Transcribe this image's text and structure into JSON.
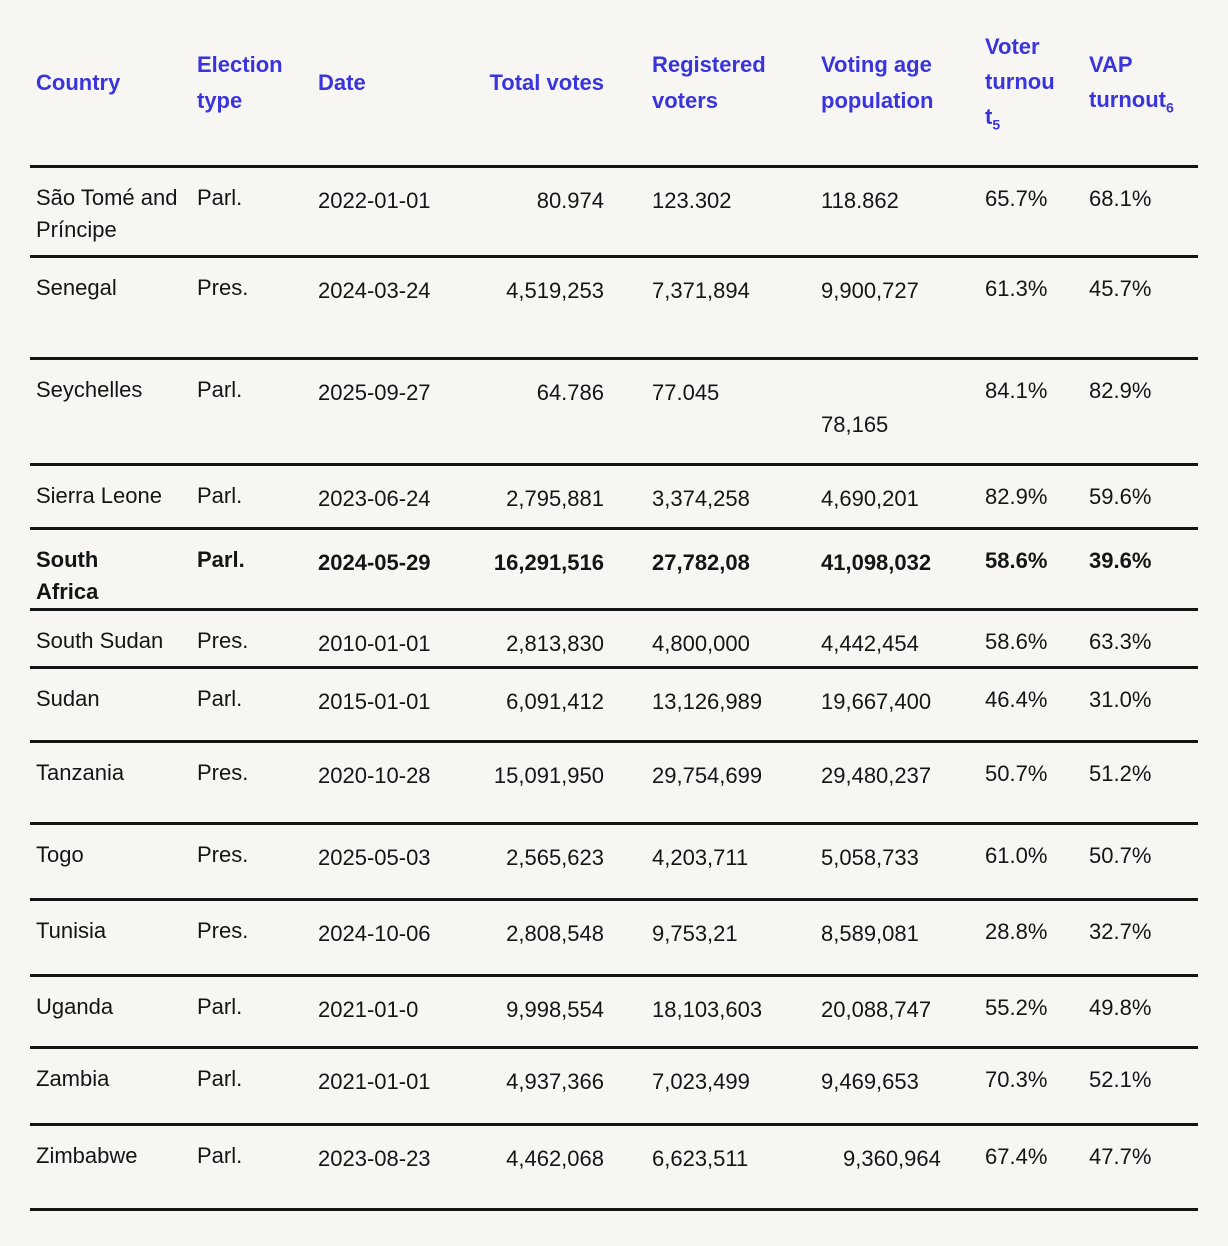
{
  "page": {
    "background_color": "#f7f6f2",
    "accent_color": "#3a34dd",
    "text_color": "#151515",
    "rule_color": "#141414"
  },
  "table": {
    "columns": [
      {
        "label": "Country",
        "sub": ""
      },
      {
        "label": "Election type",
        "sub": ""
      },
      {
        "label": "Date",
        "sub": ""
      },
      {
        "label": "Total votes",
        "sub": ""
      },
      {
        "label": "Registered voters",
        "sub": ""
      },
      {
        "label": "Voting age population",
        "sub": ""
      },
      {
        "label": "Voter turnout",
        "sub": "5"
      },
      {
        "label": "VAP turnout",
        "sub": "6"
      }
    ],
    "rows": [
      {
        "country": "São Tomé and Príncipe",
        "type": "Parl.",
        "date": "2022-01-01",
        "total_votes": "80.974",
        "registered": "123.302",
        "vap": "118.862",
        "turnout": "65.7%",
        "vap_turnout": "68.1%",
        "emphasized": false
      },
      {
        "country": "Senegal",
        "type": "Pres.",
        "date": "2024-03-24",
        "total_votes": "4,519,253",
        "registered": "7,371,894",
        "vap": "9,900,727",
        "turnout": "61.3%",
        "vap_turnout": "45.7%",
        "emphasized": false
      },
      {
        "country": "Seychelles",
        "type": "Parl.",
        "date": "2025-09-27",
        "total_votes": "64.786",
        "registered": "77.045",
        "vap": "78,165",
        "turnout": "84.1%",
        "vap_turnout": "82.9%",
        "emphasized": false
      },
      {
        "country": "Sierra Leone",
        "type": "Parl.",
        "date": "2023-06-24",
        "total_votes": "2,795,881",
        "registered": "3,374,258",
        "vap": "4,690,201",
        "turnout": "82.9%",
        "vap_turnout": "59.6%",
        "emphasized": false
      },
      {
        "country": "South Africa",
        "type": "Parl.",
        "date": "2024-05-29",
        "total_votes": "16,291,516",
        "registered": "27,782,08",
        "vap": "41,098,032",
        "turnout": "58.6%",
        "vap_turnout": "39.6%",
        "emphasized": true
      },
      {
        "country": "South Sudan",
        "type": "Pres.",
        "date": "2010-01-01",
        "total_votes": "2,813,830",
        "registered": "4,800,000",
        "vap": "4,442,454",
        "turnout": "58.6%",
        "vap_turnout": "63.3%",
        "emphasized": false
      },
      {
        "country": "Sudan",
        "type": "Parl.",
        "date": "2015-01-01",
        "total_votes": "6,091,412",
        "registered": "13,126,989",
        "vap": "19,667,400",
        "turnout": "46.4%",
        "vap_turnout": "31.0%",
        "emphasized": false
      },
      {
        "country": "Tanzania",
        "type": "Pres.",
        "date": "2020-10-28",
        "total_votes": "15,091,950",
        "registered": "29,754,699",
        "vap": "29,480,237",
        "turnout": "50.7%",
        "vap_turnout": "51.2%",
        "emphasized": false
      },
      {
        "country": "Togo",
        "type": "Pres.",
        "date": "2025-05-03",
        "total_votes": "2,565,623",
        "registered": "4,203,711",
        "vap": "5,058,733",
        "turnout": "61.0%",
        "vap_turnout": "50.7%",
        "emphasized": false
      },
      {
        "country": "Tunisia",
        "type": "Pres.",
        "date": "2024-10-06",
        "total_votes": "2,808,548",
        "registered": "9,753,21",
        "vap": "8,589,081",
        "turnout": "28.8%",
        "vap_turnout": "32.7%",
        "emphasized": false
      },
      {
        "country": "Uganda",
        "type": "Parl.",
        "date": "2021-01-0",
        "total_votes": "9,998,554",
        "registered": "18,103,603",
        "vap": "20,088,747",
        "turnout": "55.2%",
        "vap_turnout": "49.8%",
        "emphasized": false
      },
      {
        "country": "Zambia",
        "type": "Parl.",
        "date": "2021-01-01",
        "total_votes": "4,937,366",
        "registered": "7,023,499",
        "vap": "9,469,653",
        "turnout": "70.3%",
        "vap_turnout": "52.1%",
        "emphasized": false
      },
      {
        "country": "Zimbabwe",
        "type": "Parl.",
        "date": "2023-08-23",
        "total_votes": "4,462,068",
        "registered": "6,623,511",
        "vap": "9,360,964",
        "turnout": "67.4%",
        "vap_turnout": "47.7%",
        "emphasized": false
      }
    ]
  }
}
